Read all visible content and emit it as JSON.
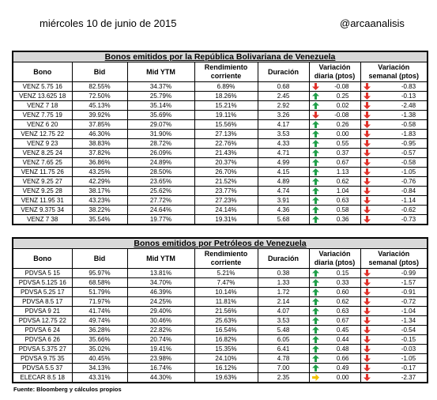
{
  "header": {
    "date": "miércoles 10 de junio de 2015",
    "handle": "@arcaanalisis"
  },
  "tables": [
    {
      "title": "Bonos emitidos por la República Bolivariana de Venezuela",
      "columns": [
        "Bono",
        "Bid",
        "Mid YTM",
        "Rendimiento corriente",
        "Duración",
        "Variación diaria (ptos)",
        "Variación semanal (ptos)"
      ],
      "rows": [
        [
          "VENZ 5.75 16",
          "82.55%",
          "34.37%",
          "6.89%",
          "0.68",
          "-0.08",
          "-0.83"
        ],
        [
          "VENZ 13.625 18",
          "72.50%",
          "25.79%",
          "18.26%",
          "2.45",
          "0.25",
          "-0.13"
        ],
        [
          "VENZ 7 18",
          "45.13%",
          "35.14%",
          "15.21%",
          "2.92",
          "0.02",
          "-2.48"
        ],
        [
          "VENZ 7.75 19",
          "39.92%",
          "35.69%",
          "19.11%",
          "3.26",
          "-0.08",
          "-1.38"
        ],
        [
          "VENZ 6 20",
          "37.85%",
          "29.07%",
          "15.56%",
          "4.17",
          "0.26",
          "-0.58"
        ],
        [
          "VENZ 12.75 22",
          "46.30%",
          "31.90%",
          "27.13%",
          "3.53",
          "0.00",
          "-1.83"
        ],
        [
          "VENZ 9 23",
          "38.83%",
          "28.72%",
          "22.76%",
          "4.33",
          "0.55",
          "-0.95"
        ],
        [
          "VENZ 8.25 24",
          "37.82%",
          "26.09%",
          "21.43%",
          "4.71",
          "0.37",
          "-0.57"
        ],
        [
          "VENZ 7.65 25",
          "36.86%",
          "24.89%",
          "20.37%",
          "4.99",
          "0.67",
          "-0.58"
        ],
        [
          "VENZ 11.75 26",
          "43.25%",
          "28.50%",
          "26.70%",
          "4.15",
          "1.13",
          "-1.05"
        ],
        [
          "VENZ 9.25 27",
          "42.29%",
          "23.65%",
          "21.52%",
          "4.89",
          "0.62",
          "-0.76"
        ],
        [
          "VENZ 9.25 28",
          "38.17%",
          "25.62%",
          "23.77%",
          "4.74",
          "1.04",
          "-0.84"
        ],
        [
          "VENZ 11.95 31",
          "43.23%",
          "27.72%",
          "27.23%",
          "3.91",
          "0.63",
          "-1.14"
        ],
        [
          "VENZ 9.375 34",
          "38.22%",
          "24.64%",
          "24.14%",
          "4.36",
          "0.58",
          "-0.62"
        ],
        [
          "VENZ 7 38",
          "35.54%",
          "19.77%",
          "19.31%",
          "5.68",
          "0.36",
          "-0.73"
        ]
      ],
      "daily_arrows": [
        "down",
        "up",
        "up",
        "down",
        "up",
        "up",
        "up",
        "up",
        "up",
        "up",
        "up",
        "up",
        "up",
        "up",
        "up"
      ],
      "weekly_arrows": [
        "down",
        "down",
        "down",
        "down",
        "down",
        "down",
        "down",
        "down",
        "down",
        "down",
        "down",
        "down",
        "down",
        "down",
        "down"
      ]
    },
    {
      "title": "Bonos emitidos por Petróleos de Venezuela",
      "columns": [
        "Bono",
        "Bid",
        "Mid YTM",
        "Rendimiento corriente",
        "Duración",
        "Variación diaria (ptos)",
        "Variación semanal (ptos)"
      ],
      "rows": [
        [
          "PDVSA 5 15",
          "95.97%",
          "13.81%",
          "5.21%",
          "0.38",
          "0.15",
          "-0.99"
        ],
        [
          "PDVSA 5.125 16",
          "68.58%",
          "34.70%",
          "7.47%",
          "1.33",
          "0.33",
          "-1.57"
        ],
        [
          "PDVSA 5.25 17",
          "51.79%",
          "46.39%",
          "10.14%",
          "1.72",
          "0.60",
          "-0.91"
        ],
        [
          "PDVSA 8.5 17",
          "71.97%",
          "24.25%",
          "11.81%",
          "2.14",
          "0.62",
          "-0.72"
        ],
        [
          "PDVSA 9 21",
          "41.74%",
          "29.40%",
          "21.56%",
          "4.07",
          "0.63",
          "-1.04"
        ],
        [
          "PDVSA 12.75 22",
          "49.74%",
          "30.46%",
          "25.63%",
          "3.53",
          "0.67",
          "-1.34"
        ],
        [
          "PDVSA 6 24",
          "36.28%",
          "22.82%",
          "16.54%",
          "5.48",
          "0.45",
          "-0.54"
        ],
        [
          "PDVSA 6 26",
          "35.66%",
          "20.74%",
          "16.82%",
          "6.05",
          "0.44",
          "-0.15"
        ],
        [
          "PDVSA 5.375 27",
          "35.02%",
          "19.41%",
          "15.35%",
          "6.41",
          "0.48",
          "-0.03"
        ],
        [
          "PDVSA 9.75 35",
          "40.45%",
          "23.98%",
          "24.10%",
          "4.78",
          "0.66",
          "-1.05"
        ],
        [
          "PDVSA 5.5 37",
          "34.13%",
          "16.74%",
          "16.12%",
          "7.00",
          "0.49",
          "-0.17"
        ],
        [
          "ELECAR 8.5 18",
          "43.31%",
          "44.30%",
          "19.63%",
          "2.35",
          "0.00",
          "-2.37"
        ]
      ],
      "daily_arrows": [
        "up",
        "up",
        "up",
        "up",
        "up",
        "up",
        "up",
        "up",
        "up",
        "up",
        "up",
        "flat"
      ],
      "weekly_arrows": [
        "down",
        "down",
        "down",
        "down",
        "down",
        "down",
        "down",
        "down",
        "down",
        "down",
        "down",
        "down"
      ]
    }
  ],
  "source": "Fuente: Bloomberg y cálculos propios"
}
